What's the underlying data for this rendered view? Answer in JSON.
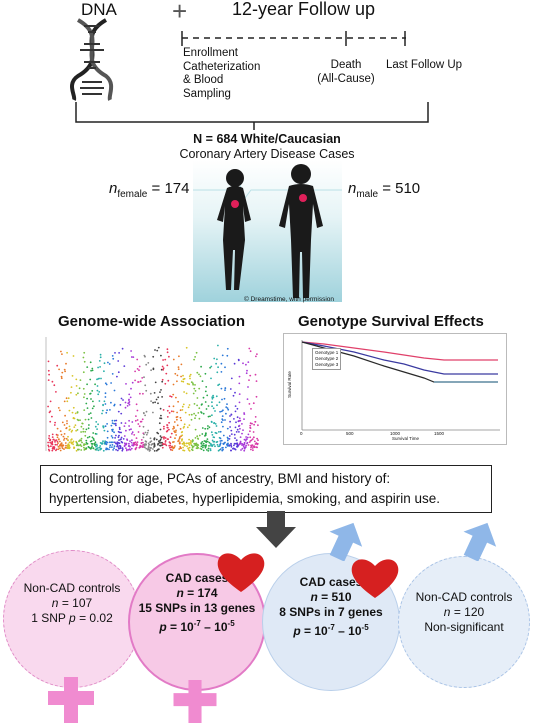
{
  "timeline": {
    "dna_label": "DNA",
    "plus_sign": "+",
    "followup_label": "12-year Follow up",
    "enrollment": [
      "Enrollment",
      "Catheterization",
      "& Blood",
      "Sampling"
    ],
    "death": [
      "Death",
      "(All-Cause)"
    ],
    "last_followup": "Last Follow Up"
  },
  "cohort": {
    "title": "N = 684 White/Caucasian",
    "subtitle": "Coronary Artery Disease Cases",
    "female_n_sub": "female",
    "female_value": " = 174",
    "male_n_sub": "male",
    "male_value": " = 510",
    "n_symbol": "n",
    "credit": "© Dreamstime, with permission"
  },
  "panels": {
    "gwas_title": "Genome-wide Association",
    "survival_title": "Genotype Survival Effects",
    "survival_legend": [
      "Genotype 1",
      "Genotype 2",
      "Genotype 3"
    ],
    "survival_ylabel": "Survival Rate",
    "survival_xlabel": "Survival Time",
    "survival_xticks": [
      "0",
      "500",
      "1000",
      "1500"
    ]
  },
  "controls": {
    "line1": "Controlling for age, PCAs of ancestry, BMI and history of:",
    "line2": "hypertension, diabetes, hyperlipidemia, smoking, and aspirin use."
  },
  "groups": {
    "female_controls": {
      "title": "Non-CAD controls",
      "n_label": "n",
      "n_value": " = 107",
      "snp": "1 SNP ",
      "p_label": "p",
      "p_value": " = 0.02"
    },
    "female_cases": {
      "title": "CAD cases",
      "n_label": "n",
      "n_value": " = 174",
      "snps": "15 SNPs in 13 genes",
      "p_label": "p",
      "p_eq": " = 10",
      "exp1": "-7",
      "dash": " – 10",
      "exp2": "-5"
    },
    "male_cases": {
      "title": "CAD cases",
      "n_label": "n",
      "n_value": " = 510",
      "snps": "8 SNPs in 7 genes",
      "p_label": "p",
      "p_eq": " = 10",
      "exp1": "-7",
      "dash": " – 10",
      "exp2": "-5"
    },
    "male_controls": {
      "title": "Non-CAD controls",
      "n_label": "n",
      "n_value": " = 120",
      "result": "Non-significant"
    }
  },
  "colors": {
    "female_pink": "#f7c7e8",
    "female_border": "#e27ac6",
    "male_blue": "#dce8f6",
    "male_border": "#9dbfe6",
    "heart_red": "#d62020",
    "venus_pink": "#f08bd0",
    "arrow_blue": "#8fb7e8",
    "arrow_gray": "#444444"
  }
}
